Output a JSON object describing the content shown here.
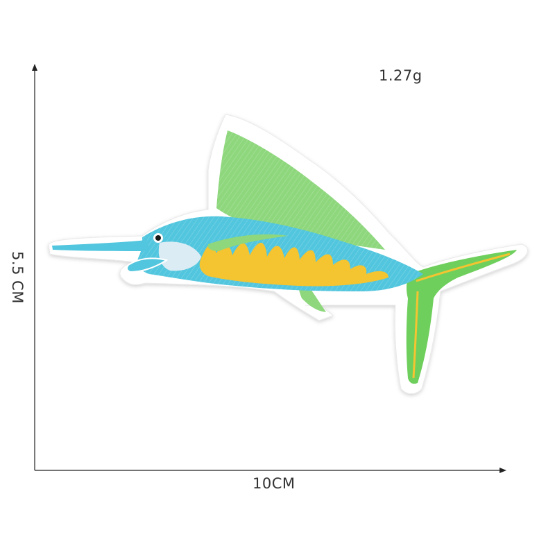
{
  "product": {
    "weight_label": "1.27g",
    "width_label": "10CM",
    "height_label": "5.5 CM",
    "subject": "swordfish-embroidered-patch"
  },
  "colors": {
    "background": "#ffffff",
    "patch_border": "#ffffff",
    "body_blue": "#52c6de",
    "fin_green": "#8ed77d",
    "tail_green": "#6fcf5c",
    "belly_yellow": "#f4c431",
    "measure_line": "#222222"
  }
}
